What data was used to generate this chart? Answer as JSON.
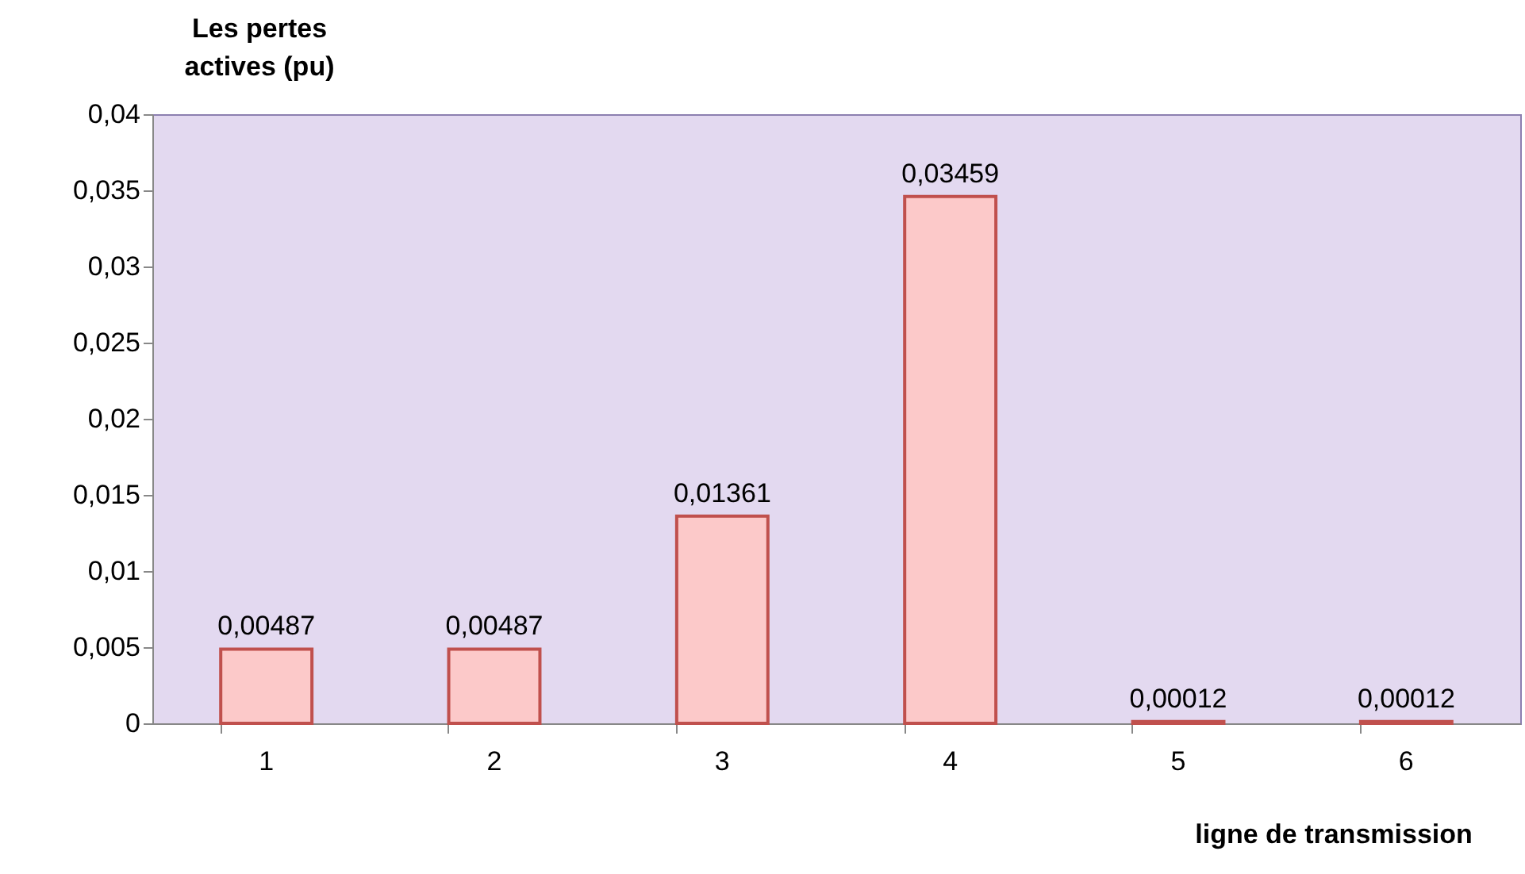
{
  "chart_data": {
    "type": "bar",
    "xlabel": "ligne de transmission",
    "ylabel": "Les pertes actives (pu)",
    "categories": [
      "1",
      "2",
      "3",
      "4",
      "5",
      "6"
    ],
    "values": [
      0.00487,
      0.00487,
      0.01361,
      0.03459,
      0.00012,
      0.00012
    ],
    "value_labels": [
      "0,00487",
      "0,00487",
      "0,01361",
      "0,03459",
      "0,00012",
      "0,00012"
    ],
    "color": "#fcc9c9",
    "ylim": [
      0,
      0.04
    ],
    "yticks": [
      {
        "value": 0,
        "label": "0"
      },
      {
        "value": 0.005,
        "label": "0,005"
      },
      {
        "value": 0.01,
        "label": "0,01"
      },
      {
        "value": 0.015,
        "label": "0,015"
      },
      {
        "value": 0.02,
        "label": "0,02"
      },
      {
        "value": 0.025,
        "label": "0,025"
      },
      {
        "value": 0.03,
        "label": "0,03"
      },
      {
        "value": 0.035,
        "label": "0,035"
      },
      {
        "value": 0.04,
        "label": "0,04"
      }
    ],
    "grid": false
  }
}
